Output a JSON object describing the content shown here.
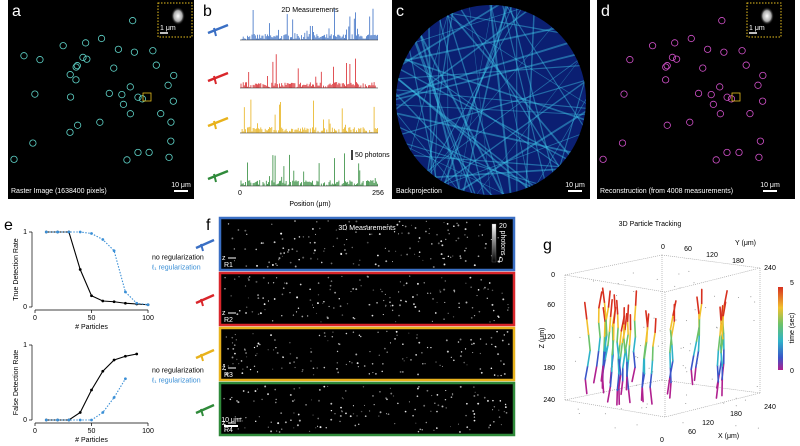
{
  "panel_a": {
    "letter": "a",
    "caption": "Raster Image  (1638400 pixels)",
    "scale_bar": "10 μm",
    "inset_scale": "1 μm"
  },
  "panel_b": {
    "letter": "b",
    "title": "2D Measurements",
    "scale_bar": "50 photons",
    "x_label": "Position (μm)",
    "x_ticks": [
      "0",
      "256"
    ]
  },
  "panel_c": {
    "letter": "c",
    "caption": "Backprojection",
    "scale_bar": "10 μm"
  },
  "panel_d": {
    "letter": "d",
    "caption": "Reconstruction  (from 4008 measurements)",
    "scale_bar": "10 μm",
    "inset_scale": "1 μm"
  },
  "panel_e": {
    "letter": "e"
  },
  "panel_f": {
    "letter": "f",
    "title": "3D Measurements",
    "colorbar_ticks": [
      "20",
      "0"
    ],
    "colorbar_label": "photons",
    "axis_letter": "z",
    "row_labels": [
      "R1",
      "R2",
      "R3",
      "R4"
    ],
    "scale_bar": "10 μm"
  },
  "panel_g": {
    "letter": "g",
    "title": "3D Particle Tracking",
    "y_label": "Y (μm)",
    "x_label": "X (μm)",
    "z_label": "Z (μm)",
    "y_ticks": [
      "0",
      "60",
      "120",
      "180",
      "240"
    ],
    "x_ticks": [
      "0",
      "60",
      "120",
      "180",
      "240"
    ],
    "z_ticks": [
      "0",
      "60",
      "120",
      "180",
      "240"
    ],
    "colorbar_label": "time (sec)",
    "colorbar_ticks": [
      "5",
      "0"
    ]
  },
  "chart_data": [
    {
      "type": "line",
      "y_label": "True Detection Rate",
      "x_label": "# Particles",
      "x": [
        10,
        20,
        30,
        40,
        50,
        60,
        70,
        80,
        90,
        100
      ],
      "xlim": [
        0,
        100
      ],
      "xticks": [
        0,
        50,
        100
      ],
      "ylim": [
        0,
        1
      ],
      "yticks": [
        0,
        1
      ],
      "series": [
        {
          "name": "no regularization",
          "color": "#000000",
          "style": "solid",
          "values": [
            1,
            1,
            1,
            0.5,
            0.15,
            0.08,
            0.07,
            0.05,
            0.04,
            0.03
          ]
        },
        {
          "name": "ℓ₁ regularization",
          "color": "#3a8fd6",
          "style": "dotted",
          "values": [
            1,
            1,
            1,
            1,
            0.98,
            0.9,
            0.75,
            0.2,
            0.05,
            0.03
          ]
        }
      ]
    },
    {
      "type": "line",
      "y_label": "False Detection Rate",
      "x_label": "# Particles",
      "x": [
        10,
        20,
        30,
        40,
        50,
        60,
        70,
        80,
        90,
        100
      ],
      "xlim": [
        0,
        100
      ],
      "xticks": [
        0,
        50,
        100
      ],
      "ylim": [
        0,
        1
      ],
      "yticks": [
        0,
        1
      ],
      "series": [
        {
          "name": "no regularization",
          "color": "#000000",
          "style": "solid",
          "values": [
            0,
            0,
            0,
            0.1,
            0.4,
            0.65,
            0.8,
            0.85,
            0.88,
            null
          ]
        },
        {
          "name": "ℓ₁ regularization",
          "color": "#3a8fd6",
          "style": "dotted",
          "values": [
            0,
            0,
            0,
            0,
            0,
            0.1,
            0.3,
            0.55,
            null,
            null
          ]
        }
      ]
    }
  ]
}
